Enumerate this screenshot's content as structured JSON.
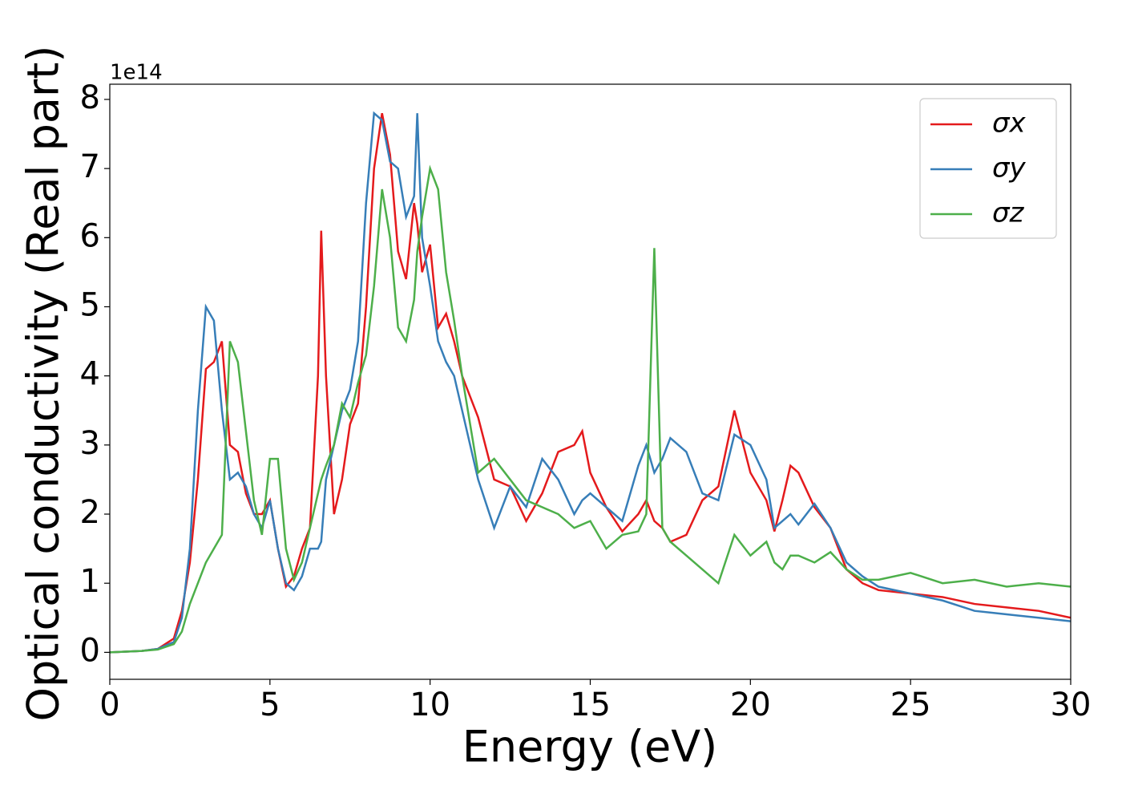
{
  "chart_data": {
    "type": "line",
    "xlabel": "Energy (eV)",
    "ylabel": "Optical conductivity (Real part)",
    "offset_label": "1e14",
    "x": [
      0,
      1,
      1.5,
      2,
      2.25,
      2.5,
      2.75,
      3,
      3.25,
      3.5,
      3.75,
      4,
      4.25,
      4.5,
      4.75,
      5,
      5.25,
      5.5,
      5.75,
      6,
      6.25,
      6.5,
      6.6,
      6.75,
      7,
      7.25,
      7.5,
      7.75,
      8,
      8.25,
      8.5,
      8.75,
      9,
      9.25,
      9.5,
      9.6,
      9.75,
      10,
      10.25,
      10.5,
      10.75,
      11,
      11.5,
      12,
      12.5,
      13,
      13.5,
      14,
      14.5,
      14.75,
      15,
      15.5,
      16,
      16.5,
      16.75,
      17,
      17.25,
      17.5,
      18,
      18.5,
      19,
      19.5,
      20,
      20.5,
      20.75,
      21,
      21.25,
      21.5,
      22,
      22.5,
      23,
      23.5,
      24,
      25,
      26,
      27,
      28,
      29,
      30
    ],
    "series": [
      {
        "name": "σx",
        "color": "#e41a1c",
        "values": [
          0,
          0.02,
          0.05,
          0.2,
          0.6,
          1.3,
          2.5,
          4.1,
          4.2,
          4.5,
          3.0,
          2.9,
          2.3,
          2.0,
          2.0,
          2.2,
          1.5,
          0.95,
          1.1,
          1.5,
          1.8,
          4.0,
          6.1,
          4.0,
          2.0,
          2.5,
          3.3,
          3.6,
          5.0,
          7.0,
          7.8,
          7.2,
          5.8,
          5.4,
          6.5,
          6.2,
          5.5,
          5.9,
          4.7,
          4.9,
          4.5,
          4.0,
          3.4,
          2.5,
          2.4,
          1.9,
          2.3,
          2.9,
          3.0,
          3.2,
          2.6,
          2.1,
          1.75,
          2.0,
          2.2,
          1.9,
          1.8,
          1.6,
          1.7,
          2.2,
          2.4,
          3.5,
          2.6,
          2.2,
          1.75,
          2.2,
          2.7,
          2.6,
          2.1,
          1.8,
          1.2,
          1.0,
          0.9,
          0.85,
          0.8,
          0.7,
          0.65,
          0.6,
          0.5
        ]
      },
      {
        "name": "σy",
        "color": "#377eb8",
        "values": [
          0,
          0.02,
          0.05,
          0.15,
          0.5,
          1.5,
          3.5,
          5.0,
          4.8,
          3.5,
          2.5,
          2.6,
          2.4,
          2.0,
          1.8,
          2.2,
          1.5,
          1.0,
          0.9,
          1.1,
          1.5,
          1.5,
          1.6,
          2.5,
          3.0,
          3.5,
          3.8,
          4.5,
          6.5,
          7.8,
          7.7,
          7.1,
          7.0,
          6.3,
          6.6,
          7.8,
          6.0,
          5.3,
          4.5,
          4.2,
          4.0,
          3.5,
          2.5,
          1.8,
          2.4,
          2.1,
          2.8,
          2.5,
          2.0,
          2.2,
          2.3,
          2.1,
          1.9,
          2.7,
          3.0,
          2.6,
          2.8,
          3.1,
          2.9,
          2.3,
          2.2,
          3.15,
          3.0,
          2.5,
          1.8,
          1.9,
          2.0,
          1.85,
          2.15,
          1.8,
          1.3,
          1.1,
          0.95,
          0.85,
          0.75,
          0.6,
          0.55,
          0.5,
          0.45
        ]
      },
      {
        "name": "σz",
        "color": "#4daf4a",
        "values": [
          0,
          0.02,
          0.04,
          0.12,
          0.3,
          0.7,
          1.0,
          1.3,
          1.5,
          1.7,
          4.5,
          4.2,
          3.2,
          2.2,
          1.7,
          2.8,
          2.8,
          1.5,
          1.05,
          1.3,
          1.8,
          2.3,
          2.5,
          2.7,
          3.0,
          3.6,
          3.4,
          3.9,
          4.3,
          5.3,
          6.7,
          6.0,
          4.7,
          4.5,
          5.1,
          5.8,
          6.3,
          7.0,
          6.7,
          5.5,
          4.8,
          4.0,
          2.6,
          2.8,
          2.5,
          2.2,
          2.1,
          2.0,
          1.8,
          1.85,
          1.9,
          1.5,
          1.7,
          1.75,
          2.0,
          5.85,
          1.8,
          1.6,
          1.4,
          1.2,
          1.0,
          1.7,
          1.4,
          1.6,
          1.3,
          1.2,
          1.4,
          1.4,
          1.3,
          1.45,
          1.2,
          1.05,
          1.05,
          1.15,
          1.0,
          1.05,
          0.95,
          1.0,
          0.95
        ]
      }
    ],
    "xlim": [
      0,
      30
    ],
    "xticks": [
      0,
      5,
      10,
      15,
      20,
      25,
      30
    ],
    "ylim": [
      -0.39,
      8.22
    ],
    "yticks": [
      0,
      1,
      2,
      3,
      4,
      5,
      6,
      7,
      8
    ],
    "legend": "upper right"
  }
}
